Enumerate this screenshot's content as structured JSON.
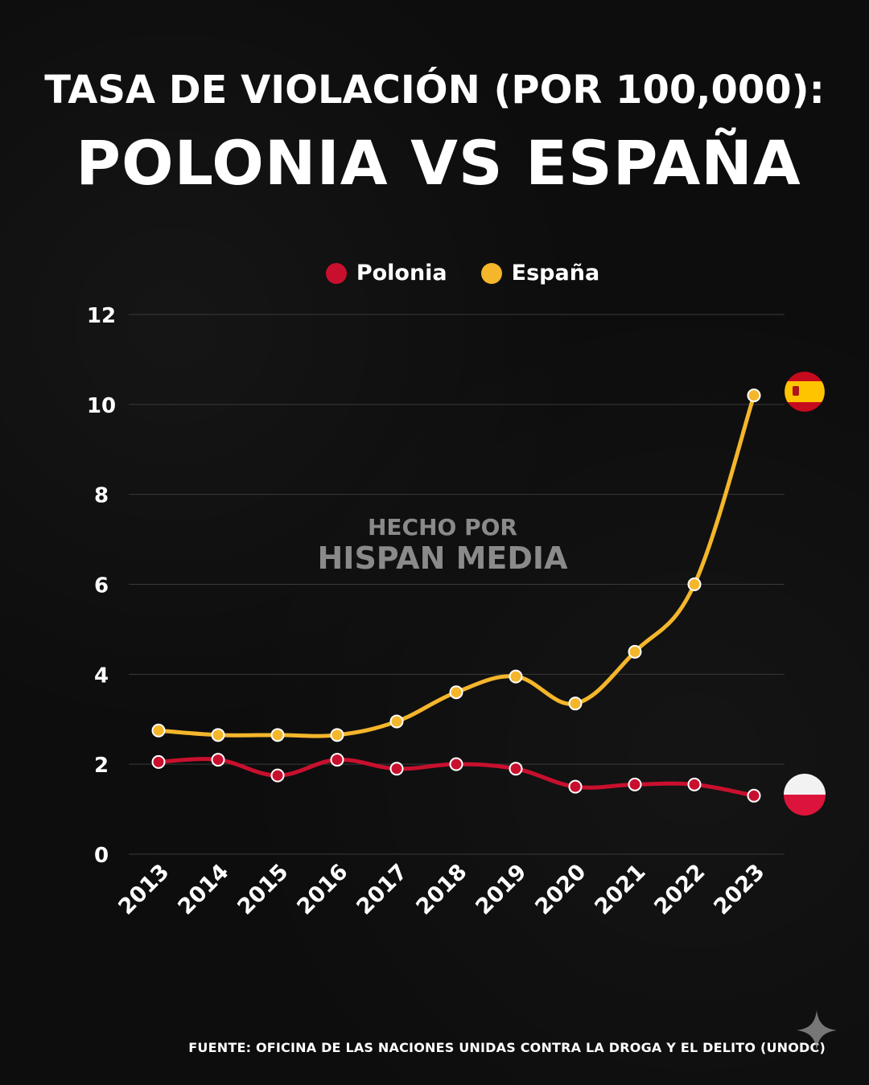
{
  "title": {
    "line1": "TASA DE VIOLACIÓN (POR 100,000):",
    "line2": "POLONIA VS ESPAÑA"
  },
  "watermark": {
    "line1": "HECHO POR",
    "line2": "HISPAN MEDIA"
  },
  "source": "FUENTE: OFICINA DE LAS NACIONES UNIDAS CONTRA LA DROGA Y EL DELITO (UNODC)",
  "colors": {
    "background": "#0d0d0d",
    "polonia": "#c8102e",
    "espana": "#f4b62b",
    "grid": "#3a3a3a"
  },
  "chart_data": {
    "type": "line",
    "title": "TASA DE VIOLACIÓN (POR 100,000): POLONIA VS ESPAÑA",
    "xlabel": "",
    "ylabel": "",
    "ylim": [
      0,
      12
    ],
    "yticks": [
      0,
      2,
      4,
      6,
      8,
      10,
      12
    ],
    "grid": true,
    "legend": "top-center",
    "x": [
      "2013",
      "2014",
      "2015",
      "2016",
      "2017",
      "2018",
      "2019",
      "2020",
      "2021",
      "2022",
      "2023"
    ],
    "series": [
      {
        "name": "Polonia",
        "color": "#c8102e",
        "flag_icon": "poland-flag-icon",
        "values": [
          2.05,
          2.1,
          1.75,
          2.1,
          1.9,
          2.0,
          1.9,
          1.5,
          1.55,
          1.55,
          1.3
        ]
      },
      {
        "name": "España",
        "color": "#f4b62b",
        "flag_icon": "spain-flag-icon",
        "values": [
          2.75,
          2.65,
          2.65,
          2.65,
          2.95,
          3.6,
          3.95,
          3.35,
          4.5,
          6.0,
          10.2
        ]
      }
    ]
  }
}
